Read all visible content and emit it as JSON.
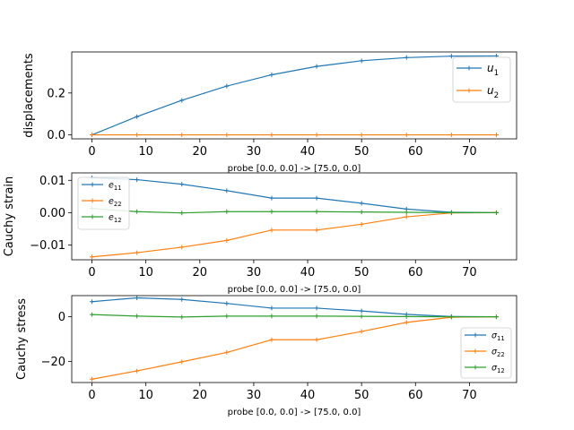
{
  "chart_data": [
    {
      "type": "line",
      "xlabel": "probe [0.0, 0.0] -> [75.0, 0.0]",
      "ylabel": "displacements",
      "x": [
        0,
        8.33,
        16.67,
        25,
        33.33,
        41.67,
        50,
        58.33,
        66.67,
        75
      ],
      "xlim": [
        -3.75,
        78.75
      ],
      "ylim": [
        -0.019,
        0.396
      ],
      "xticks": [
        0,
        10,
        20,
        30,
        40,
        50,
        60,
        70
      ],
      "yticks": [
        0.0,
        0.2
      ],
      "ytick_labels": [
        "0.0",
        "0.2"
      ],
      "legend": "right",
      "grid": false,
      "series": [
        {
          "name": "u1",
          "sub": "1",
          "sym": "u",
          "color": "#1f77b4",
          "values": [
            0.0,
            0.087,
            0.165,
            0.233,
            0.287,
            0.327,
            0.354,
            0.369,
            0.376,
            0.377
          ]
        },
        {
          "name": "u2",
          "sub": "2",
          "sym": "u",
          "color": "#ff7f0e",
          "values": [
            0,
            0,
            0,
            0,
            0,
            0,
            0,
            0,
            0,
            0
          ]
        }
      ]
    },
    {
      "type": "line",
      "xlabel": "probe [0.0, 0.0] -> [75.0, 0.0]",
      "ylabel": "Cauchy strain",
      "x": [
        0,
        8.33,
        16.67,
        25,
        33.33,
        41.67,
        50,
        58.33,
        66.67,
        75
      ],
      "xlim": [
        -3.75,
        78.75
      ],
      "ylim": [
        -0.0146,
        0.0123
      ],
      "xticks": [
        0,
        10,
        20,
        30,
        40,
        50,
        60,
        70
      ],
      "yticks": [
        0.01,
        0.0,
        -0.01
      ],
      "ytick_labels": [
        "0.01",
        "0.00",
        "−0.01"
      ],
      "legend": "top-left",
      "grid": false,
      "series": [
        {
          "name": "e11",
          "sub": "11",
          "sym": "e",
          "color": "#1f77b4",
          "values": [
            0.0108,
            0.0102,
            0.0088,
            0.0068,
            0.0045,
            0.0045,
            0.0029,
            0.0011,
            0.0001,
            0.0
          ]
        },
        {
          "name": "e22",
          "sub": "22",
          "sym": "e",
          "color": "#ff7f0e",
          "values": [
            -0.0137,
            -0.0124,
            -0.0107,
            -0.0086,
            -0.0054,
            -0.0054,
            -0.0036,
            -0.0013,
            -0.0001,
            0.0
          ]
        },
        {
          "name": "e12",
          "sub": "12",
          "sym": "e",
          "color": "#2ca02c",
          "values": [
            0.0013,
            0.0003,
            -0.0001,
            0.0003,
            0.0003,
            0.0003,
            0.0002,
            0.0001,
            0.0,
            0.0
          ]
        }
      ]
    },
    {
      "type": "line",
      "xlabel": "probe [0.0, 0.0] -> [75.0, 0.0]",
      "ylabel": "Cauchy stress",
      "x": [
        0,
        8.33,
        16.67,
        25,
        33.33,
        41.67,
        50,
        58.33,
        66.67,
        75
      ],
      "xlim": [
        -3.75,
        78.75
      ],
      "ylim": [
        -29.5,
        9.5
      ],
      "xticks": [
        0,
        10,
        20,
        30,
        40,
        50,
        60,
        70
      ],
      "yticks": [
        0,
        -20
      ],
      "ytick_labels": [
        "0",
        "−20"
      ],
      "legend": "right",
      "grid": false,
      "series": [
        {
          "name": "σ11",
          "sub": "11",
          "sym": "σ",
          "color": "#1f77b4",
          "values": [
            6.8,
            8.5,
            7.8,
            6.0,
            3.9,
            3.9,
            2.6,
            1.1,
            0.1,
            0.0
          ]
        },
        {
          "name": "σ22",
          "sub": "22",
          "sym": "σ",
          "color": "#ff7f0e",
          "values": [
            -28.0,
            -24.3,
            -20.2,
            -16.0,
            -10.3,
            -10.3,
            -6.6,
            -2.5,
            -0.2,
            0.0
          ]
        },
        {
          "name": "σ12",
          "sub": "12",
          "sym": "σ",
          "color": "#2ca02c",
          "values": [
            1.0,
            0.3,
            -0.1,
            0.3,
            0.3,
            0.3,
            0.2,
            0.1,
            0.0,
            0.0
          ]
        }
      ]
    }
  ]
}
